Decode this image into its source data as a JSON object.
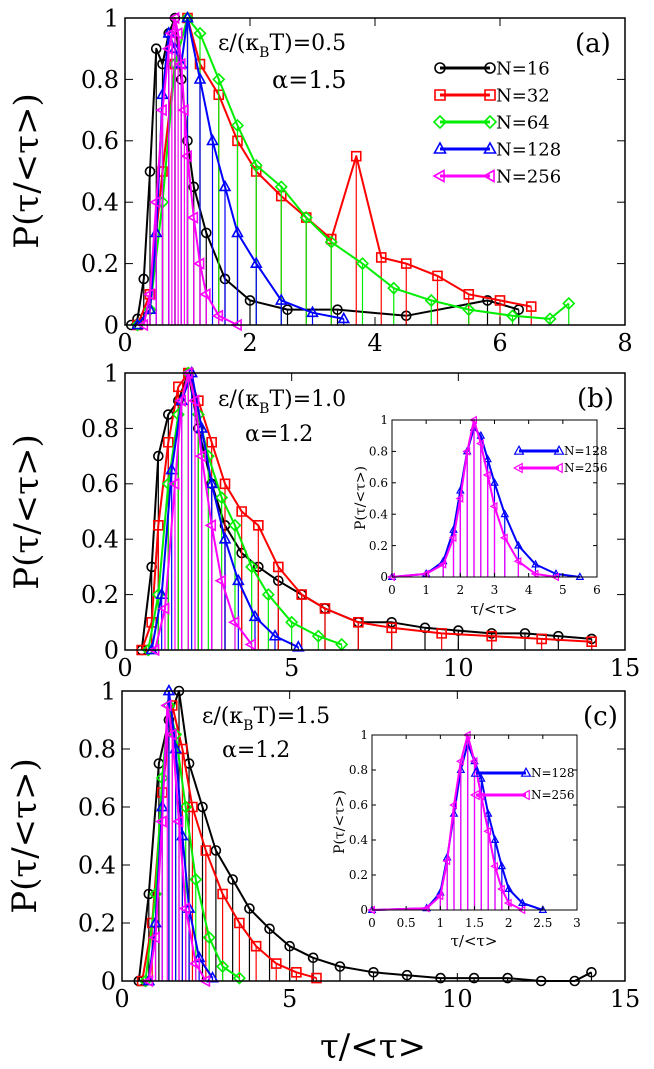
{
  "figure": {
    "shared_xlabel": "τ/<τ>",
    "series_styles": [
      {
        "name": "N=16",
        "color": "#000000",
        "marker": "circle"
      },
      {
        "name": "N=32",
        "color": "#ff0000",
        "marker": "square"
      },
      {
        "name": "N=64",
        "color": "#00ee00",
        "marker": "diamond"
      },
      {
        "name": "N=128",
        "color": "#0000ff",
        "marker": "triangle-up"
      },
      {
        "name": "N=256",
        "color": "#ff00ff",
        "marker": "triangle-left"
      }
    ]
  },
  "chart_data": [
    {
      "type": "line",
      "panel_label": "(a)",
      "annot_eps": "ε/(κ",
      "annot_eps_sub": "B",
      "annot_eps_tail": "T)=0.5",
      "annot_alpha": "α=1.5",
      "ylabel": "P(τ/<τ>)",
      "xlim": [
        0,
        8
      ],
      "ylim": [
        0,
        1
      ],
      "xticks": [
        0,
        2,
        4,
        6,
        8
      ],
      "yticks": [
        0,
        0.2,
        0.4,
        0.6,
        0.8,
        1
      ],
      "xticklabels": [
        "0",
        "2",
        "4",
        "6",
        "8"
      ],
      "yticklabels": [
        "0",
        "0.2",
        "0.4",
        "0.6",
        "0.8",
        "1"
      ],
      "legend_position": "top-right",
      "series": [
        {
          "name": "N=16",
          "x": [
            0.1,
            0.2,
            0.3,
            0.4,
            0.5,
            0.6,
            0.7,
            0.8,
            0.9,
            1.0,
            1.1,
            1.3,
            1.6,
            2.0,
            2.6,
            3.4,
            4.5,
            5.8,
            6.3
          ],
          "y": [
            0,
            0.02,
            0.15,
            0.5,
            0.9,
            0.85,
            0.95,
            1.0,
            0.8,
            0.6,
            0.45,
            0.3,
            0.15,
            0.08,
            0.05,
            0.05,
            0.03,
            0.08,
            0.05
          ]
        },
        {
          "name": "N=32",
          "x": [
            0.2,
            0.4,
            0.6,
            0.8,
            1.0,
            1.2,
            1.5,
            1.8,
            2.1,
            2.5,
            2.9,
            3.3,
            3.7,
            4.1,
            4.5,
            5.0,
            5.5,
            6.0,
            6.5
          ],
          "y": [
            0,
            0.1,
            0.5,
            0.85,
            1.0,
            0.85,
            0.75,
            0.6,
            0.5,
            0.42,
            0.35,
            0.28,
            0.55,
            0.22,
            0.2,
            0.16,
            0.1,
            0.08,
            0.06
          ]
        },
        {
          "name": "N=64",
          "x": [
            0.2,
            0.4,
            0.6,
            0.8,
            1.0,
            1.2,
            1.5,
            1.8,
            2.1,
            2.5,
            2.9,
            3.3,
            3.8,
            4.3,
            4.9,
            5.5,
            6.2,
            6.8,
            7.1
          ],
          "y": [
            0,
            0.05,
            0.4,
            0.85,
            1.0,
            0.95,
            0.8,
            0.65,
            0.52,
            0.45,
            0.35,
            0.27,
            0.2,
            0.12,
            0.08,
            0.05,
            0.03,
            0.02,
            0.07
          ]
        },
        {
          "name": "N=128",
          "x": [
            0.2,
            0.4,
            0.5,
            0.6,
            0.7,
            0.8,
            0.9,
            1.0,
            1.2,
            1.4,
            1.6,
            1.8,
            2.1,
            2.5,
            3.0,
            3.5
          ],
          "y": [
            0,
            0.05,
            0.3,
            0.75,
            0.95,
            0.9,
            0.85,
            1.0,
            0.8,
            0.6,
            0.45,
            0.3,
            0.2,
            0.08,
            0.04,
            0.02
          ]
        },
        {
          "name": "N=256",
          "x": [
            0.3,
            0.4,
            0.5,
            0.6,
            0.7,
            0.75,
            0.8,
            0.85,
            0.9,
            0.95,
            1.0,
            1.1,
            1.2,
            1.3,
            1.5,
            1.8
          ],
          "y": [
            0,
            0.1,
            0.4,
            0.7,
            0.9,
            0.95,
            1.0,
            0.95,
            0.85,
            0.7,
            0.55,
            0.35,
            0.2,
            0.1,
            0.03,
            0
          ]
        }
      ]
    },
    {
      "type": "line",
      "panel_label": "(b)",
      "annot_eps": "ε/(κ",
      "annot_eps_sub": "B",
      "annot_eps_tail": "T)=1.0",
      "annot_alpha": "α=1.2",
      "ylabel": "P(τ/<τ>)",
      "xlim": [
        0,
        15
      ],
      "ylim": [
        0,
        1
      ],
      "xticks": [
        0,
        5,
        10,
        15
      ],
      "yticks": [
        0,
        0.2,
        0.4,
        0.6,
        0.8,
        1
      ],
      "xticklabels": [
        "0",
        "5",
        "10",
        "15"
      ],
      "yticklabels": [
        "0",
        "0.2",
        "0.4",
        "0.6",
        "0.8",
        "1"
      ],
      "series": [
        {
          "name": "N=16",
          "x": [
            0.5,
            0.8,
            1.0,
            1.3,
            1.6,
            1.9,
            2.2,
            2.6,
            3.0,
            3.5,
            4.0,
            4.6,
            5.3,
            6.0,
            7.0,
            8.0,
            9.0,
            10.0,
            11.0,
            12.0,
            13.0,
            14.0
          ],
          "y": [
            0,
            0.3,
            0.7,
            0.85,
            0.9,
            1.0,
            0.8,
            0.6,
            0.45,
            0.35,
            0.3,
            0.25,
            0.2,
            0.15,
            0.1,
            0.1,
            0.08,
            0.07,
            0.06,
            0.06,
            0.05,
            0.04
          ]
        },
        {
          "name": "N=32",
          "x": [
            0.5,
            0.8,
            1.0,
            1.3,
            1.6,
            1.9,
            2.2,
            2.6,
            3.0,
            3.5,
            4.0,
            4.6,
            5.3,
            6.0,
            7.0,
            8.0,
            9.5,
            11.0,
            12.5,
            14.0
          ],
          "y": [
            0,
            0.1,
            0.45,
            0.75,
            0.95,
            1.0,
            0.9,
            0.75,
            0.6,
            0.5,
            0.45,
            0.3,
            0.2,
            0.15,
            0.1,
            0.08,
            0.06,
            0.05,
            0.04,
            0.03
          ]
        },
        {
          "name": "N=64",
          "x": [
            0.7,
            1.0,
            1.3,
            1.6,
            1.9,
            2.2,
            2.5,
            2.9,
            3.3,
            3.8,
            4.3,
            5.0,
            5.8,
            6.5
          ],
          "y": [
            0,
            0.2,
            0.6,
            0.85,
            1.0,
            0.85,
            0.7,
            0.55,
            0.45,
            0.3,
            0.2,
            0.1,
            0.05,
            0.02
          ]
        },
        {
          "name": "N=128",
          "x": [
            0.8,
            1.1,
            1.4,
            1.7,
            2.0,
            2.3,
            2.6,
            3.0,
            3.4,
            3.9,
            4.5,
            5.2
          ],
          "y": [
            0,
            0.2,
            0.65,
            0.9,
            1.0,
            0.8,
            0.6,
            0.4,
            0.25,
            0.12,
            0.05,
            0.01
          ]
        },
        {
          "name": "N=256",
          "x": [
            0.9,
            1.2,
            1.5,
            1.7,
            1.9,
            2.1,
            2.3,
            2.6,
            2.9,
            3.3,
            3.8
          ],
          "y": [
            0,
            0.15,
            0.6,
            0.9,
            1.0,
            0.9,
            0.7,
            0.45,
            0.25,
            0.1,
            0.02
          ]
        }
      ],
      "inset": {
        "xlabel": "τ/<τ>",
        "ylabel": "P(τ/<τ>)",
        "xlim": [
          0,
          6
        ],
        "ylim": [
          0,
          1
        ],
        "xticks": [
          0,
          1,
          2,
          3,
          4,
          5,
          6
        ],
        "yticks": [
          0,
          0.2,
          0.4,
          0.6,
          0.8,
          1
        ],
        "xticklabels": [
          "0",
          "1",
          "2",
          "3",
          "4",
          "5",
          "6"
        ],
        "yticklabels": [
          "0",
          "0.2",
          "0.4",
          "0.6",
          "0.8",
          "1"
        ],
        "legend_position": "top-right",
        "series": [
          {
            "name": "N=128",
            "x": [
              0,
              1.0,
              1.5,
              1.8,
              2.0,
              2.2,
              2.4,
              2.6,
              2.8,
              3.0,
              3.3,
              3.7,
              4.2,
              4.8,
              5.5
            ],
            "y": [
              0,
              0.02,
              0.1,
              0.3,
              0.55,
              0.8,
              0.95,
              0.9,
              0.75,
              0.6,
              0.4,
              0.2,
              0.08,
              0.02,
              0
            ]
          },
          {
            "name": "N=256",
            "x": [
              0,
              1.0,
              1.5,
              1.8,
              2.0,
              2.2,
              2.4,
              2.6,
              2.8,
              3.0,
              3.3,
              3.7,
              4.2,
              4.8
            ],
            "y": [
              0,
              0.02,
              0.08,
              0.25,
              0.5,
              0.8,
              1.0,
              0.85,
              0.65,
              0.45,
              0.25,
              0.1,
              0.02,
              0
            ]
          }
        ]
      }
    },
    {
      "type": "line",
      "panel_label": "(c)",
      "annot_eps": "ε/(κ",
      "annot_eps_sub": "B",
      "annot_eps_tail": "T)=1.5",
      "annot_alpha": "α=1.2",
      "ylabel": "P(τ/<τ>)",
      "xlabel": "τ/<τ>",
      "xlim": [
        0,
        15
      ],
      "ylim": [
        0,
        1
      ],
      "xticks": [
        0,
        5,
        10,
        15
      ],
      "yticks": [
        0,
        0.2,
        0.4,
        0.6,
        0.8,
        1
      ],
      "xticklabels": [
        "0",
        "5",
        "10",
        "15"
      ],
      "yticklabels": [
        "0",
        "0.2",
        "0.4",
        "0.6",
        "0.8",
        "1"
      ],
      "series": [
        {
          "name": "N=16",
          "x": [
            0.5,
            0.8,
            1.1,
            1.4,
            1.7,
            2.0,
            2.4,
            2.8,
            3.3,
            3.8,
            4.4,
            5.0,
            5.7,
            6.5,
            7.5,
            8.5,
            9.5,
            10.5,
            11.5,
            12.5,
            13.5,
            14.0
          ],
          "y": [
            0,
            0.3,
            0.75,
            0.9,
            1.0,
            0.75,
            0.6,
            0.45,
            0.35,
            0.25,
            0.18,
            0.12,
            0.08,
            0.05,
            0.03,
            0.02,
            0.01,
            0.01,
            0.01,
            0,
            0,
            0.03
          ]
        },
        {
          "name": "N=32",
          "x": [
            0.6,
            0.9,
            1.2,
            1.5,
            1.8,
            2.1,
            2.5,
            3.0,
            3.5,
            4.0,
            4.6,
            5.2,
            5.8
          ],
          "y": [
            0,
            0.2,
            0.65,
            0.95,
            0.8,
            0.6,
            0.45,
            0.3,
            0.2,
            0.12,
            0.06,
            0.03,
            0.01
          ]
        },
        {
          "name": "N=64",
          "x": [
            0.7,
            1.0,
            1.2,
            1.4,
            1.6,
            1.9,
            2.2,
            2.6,
            3.0,
            3.5
          ],
          "y": [
            0,
            0.3,
            0.7,
            0.95,
            0.85,
            0.6,
            0.35,
            0.15,
            0.05,
            0.01
          ]
        },
        {
          "name": "N=128",
          "x": [
            0.8,
            1.0,
            1.2,
            1.4,
            1.6,
            1.8,
            2.0,
            2.3,
            2.7
          ],
          "y": [
            0,
            0.2,
            0.6,
            1.0,
            0.8,
            0.5,
            0.25,
            0.08,
            0.01
          ]
        },
        {
          "name": "N=256",
          "x": [
            0.8,
            1.0,
            1.2,
            1.35,
            1.5,
            1.7,
            1.9,
            2.2,
            2.5
          ],
          "y": [
            0,
            0.15,
            0.55,
            0.95,
            0.85,
            0.55,
            0.25,
            0.06,
            0
          ]
        }
      ],
      "inset": {
        "xlabel": "τ/<τ>",
        "ylabel": "P(τ/<τ>)",
        "xlim": [
          0,
          3
        ],
        "ylim": [
          0,
          1
        ],
        "xticks": [
          0,
          0.5,
          1,
          1.5,
          2,
          2.5,
          3
        ],
        "yticks": [
          0,
          0.2,
          0.4,
          0.6,
          0.8,
          1
        ],
        "xticklabels": [
          "0",
          "0.5",
          "1",
          "1.5",
          "2",
          "2.5",
          "3"
        ],
        "yticklabels": [
          "0",
          "0.2",
          "0.4",
          "0.6",
          "0.8",
          "1"
        ],
        "legend_position": "top-right",
        "series": [
          {
            "name": "N=128",
            "x": [
              0,
              0.8,
              1.0,
              1.1,
              1.2,
              1.3,
              1.4,
              1.5,
              1.6,
              1.7,
              1.8,
              1.9,
              2.0,
              2.2,
              2.5
            ],
            "y": [
              0,
              0.01,
              0.1,
              0.3,
              0.55,
              0.8,
              0.95,
              0.85,
              0.75,
              0.55,
              0.4,
              0.25,
              0.12,
              0.04,
              0
            ]
          },
          {
            "name": "N=256",
            "x": [
              0,
              0.8,
              1.0,
              1.1,
              1.2,
              1.3,
              1.4,
              1.5,
              1.6,
              1.7,
              1.8,
              1.9,
              2.0,
              2.2
            ],
            "y": [
              0,
              0.01,
              0.08,
              0.28,
              0.6,
              0.85,
              1.0,
              0.85,
              0.65,
              0.45,
              0.25,
              0.12,
              0.04,
              0
            ]
          }
        ]
      }
    }
  ]
}
